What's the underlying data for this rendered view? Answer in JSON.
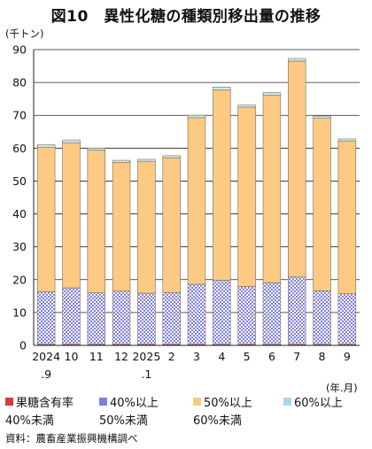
{
  "title": "図10　異性化糖の種類別移出量の推移",
  "y_unit": "(千トン)",
  "x_unit": "(年.月)",
  "source": "資料：農畜産業振興機構調べ",
  "colors": {
    "fruit": "#d9393b",
    "s40": "#7f7fe0",
    "s50": "#fcca83",
    "s60": "#a5d8ec",
    "edge": "#7a6a58"
  },
  "chart_data": {
    "type": "bar",
    "stacked": true,
    "categories": [
      "2024\n.9",
      "10",
      "11",
      "12",
      "2025\n.1",
      "2",
      "3",
      "4",
      "5",
      "6",
      "7",
      "8",
      "9"
    ],
    "ylim": [
      0,
      90
    ],
    "yticks": [
      0,
      10,
      20,
      30,
      40,
      50,
      60,
      70,
      80,
      90
    ],
    "grid": true,
    "legend_position": "bottom",
    "series": [
      {
        "key": "fruit",
        "name": "果糖含有率 40%未満",
        "line1": "果糖含有率",
        "line2": "40%未満",
        "values": [
          0.3,
          0.3,
          0.3,
          0.3,
          0.3,
          0.3,
          0.3,
          0.3,
          0.3,
          0.3,
          0.3,
          0.3,
          0.3
        ]
      },
      {
        "key": "s40",
        "name": "40%以上 50%未満",
        "line1": "40%以上",
        "line2": "50%未満",
        "values": [
          16.0,
          17.2,
          15.7,
          16.2,
          15.6,
          15.8,
          18.3,
          19.5,
          17.6,
          18.8,
          20.5,
          16.3,
          15.4
        ]
      },
      {
        "key": "s50",
        "name": "50%以上 60%未満",
        "line1": "50%以上",
        "line2": "60%未満",
        "values": [
          44.0,
          44.2,
          43.4,
          39.2,
          40.1,
          41.0,
          50.7,
          58.0,
          54.6,
          57.0,
          65.7,
          52.6,
          46.5
        ]
      },
      {
        "key": "s60",
        "name": "60%以上",
        "line1": "60%以上",
        "line2": "",
        "values": [
          0.8,
          0.8,
          0.6,
          0.6,
          0.6,
          0.6,
          0.7,
          0.8,
          0.6,
          0.8,
          0.8,
          0.6,
          0.6
        ]
      }
    ]
  }
}
